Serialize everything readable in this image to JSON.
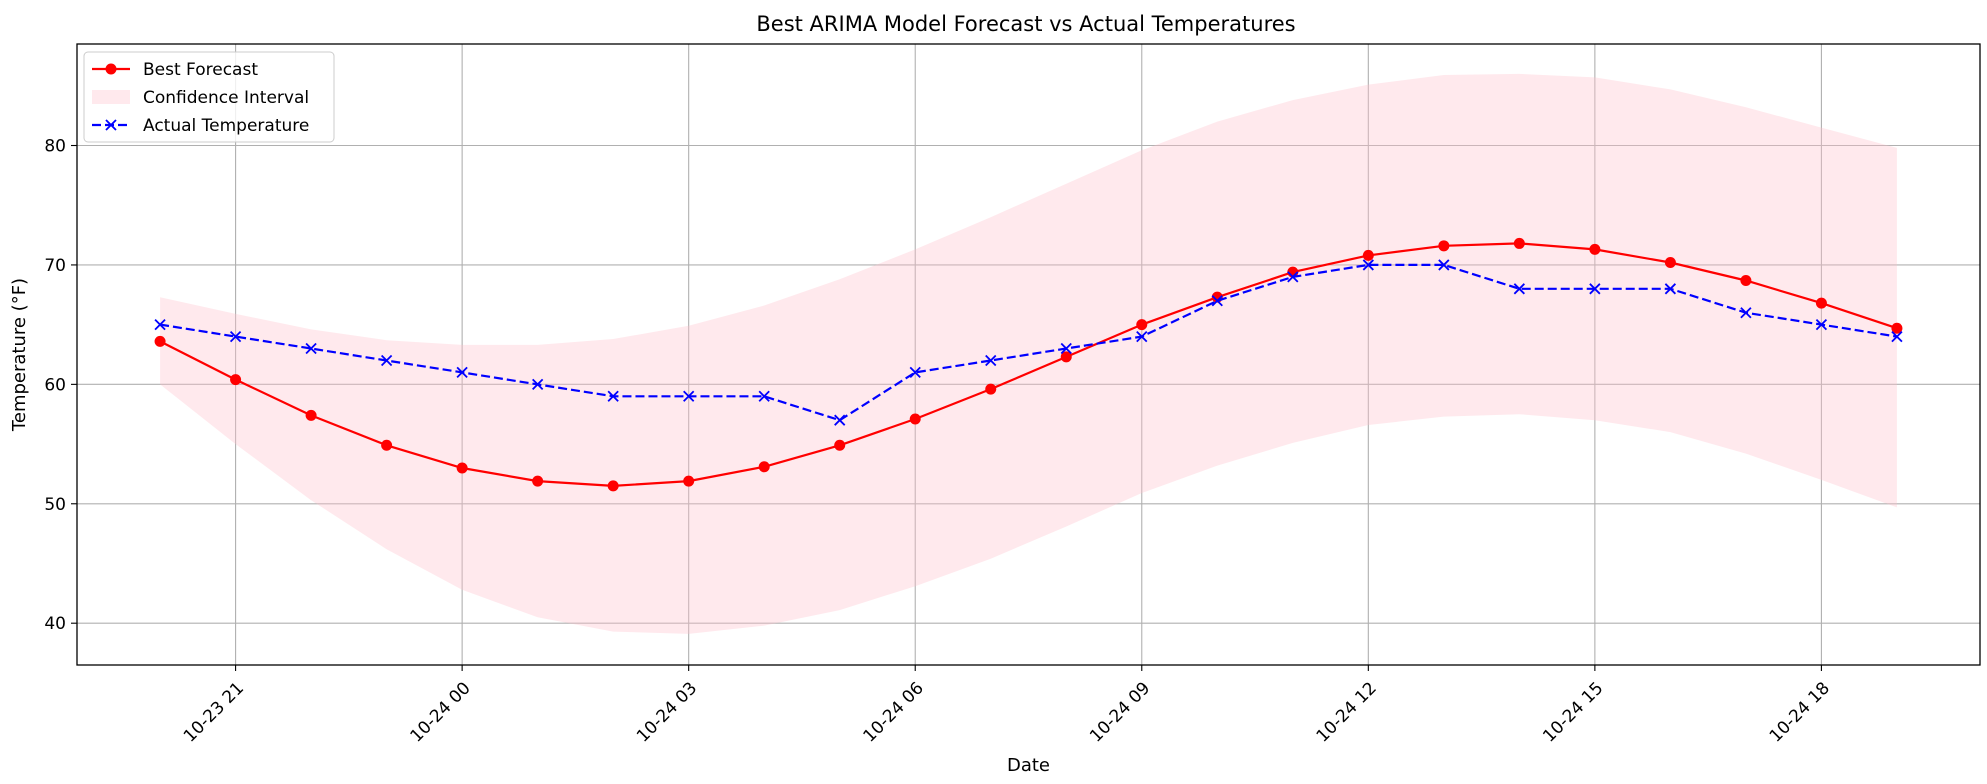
{
  "chart_data": {
    "type": "line",
    "title": "Best ARIMA Model Forecast vs Actual Temperatures",
    "xlabel": "Date",
    "ylabel": "Temperature (°F)",
    "x": [
      "10-23 20:00",
      "10-23 21:00",
      "10-23 22:00",
      "10-23 23:00",
      "10-24 00:00",
      "10-24 01:00",
      "10-24 02:00",
      "10-24 03:00",
      "10-24 04:00",
      "10-24 05:00",
      "10-24 06:00",
      "10-24 07:00",
      "10-24 08:00",
      "10-24 09:00",
      "10-24 10:00",
      "10-24 11:00",
      "10-24 12:00",
      "10-24 13:00",
      "10-24 14:00",
      "10-24 15:00",
      "10-24 16:00",
      "10-24 17:00",
      "10-24 18:00",
      "10-24 19:00"
    ],
    "x_ticks": [
      "10-23 21",
      "10-24 00",
      "10-24 03",
      "10-24 06",
      "10-24 09",
      "10-24 12",
      "10-24 15",
      "10-24 18"
    ],
    "y_ticks": [
      40,
      50,
      60,
      70,
      80
    ],
    "ylim": [
      36.5,
      88.5
    ],
    "xlim": [
      "10-23 18:54",
      "10-24 20:06"
    ],
    "grid": true,
    "legend_position": "upper left",
    "series": [
      {
        "name": "Best Forecast",
        "color": "#ff0000",
        "line_style": "solid",
        "marker": "circle",
        "values": [
          63.6,
          60.4,
          57.4,
          54.9,
          53.0,
          51.9,
          51.5,
          51.9,
          53.1,
          54.9,
          57.1,
          59.6,
          62.3,
          65.0,
          67.3,
          69.4,
          70.8,
          71.6,
          71.8,
          71.3,
          70.2,
          68.7,
          66.8,
          64.7
        ]
      },
      {
        "name": "Actual Temperature",
        "color": "#0000ff",
        "line_style": "dashed",
        "marker": "x",
        "values": [
          65,
          64,
          63,
          62,
          61,
          60,
          59,
          59,
          59,
          57,
          61,
          62,
          63,
          64,
          67,
          69,
          70,
          70,
          68,
          68,
          68,
          66,
          65,
          64
        ]
      }
    ],
    "confidence_interval": {
      "name": "Confidence Interval",
      "color": "#ffc0cb",
      "opacity": 0.35,
      "lower": [
        60.0,
        55.0,
        50.3,
        46.2,
        42.8,
        40.5,
        39.3,
        39.1,
        39.8,
        41.1,
        43.1,
        45.4,
        48.1,
        50.9,
        53.2,
        55.1,
        56.6,
        57.3,
        57.5,
        57.0,
        56.0,
        54.2,
        52.0,
        49.7
      ],
      "upper": [
        67.3,
        65.9,
        64.6,
        63.7,
        63.3,
        63.3,
        63.8,
        64.9,
        66.6,
        68.8,
        71.3,
        74.0,
        76.8,
        79.6,
        82.0,
        83.8,
        85.1,
        85.9,
        86.0,
        85.7,
        84.7,
        83.2,
        81.5,
        79.8
      ]
    }
  }
}
